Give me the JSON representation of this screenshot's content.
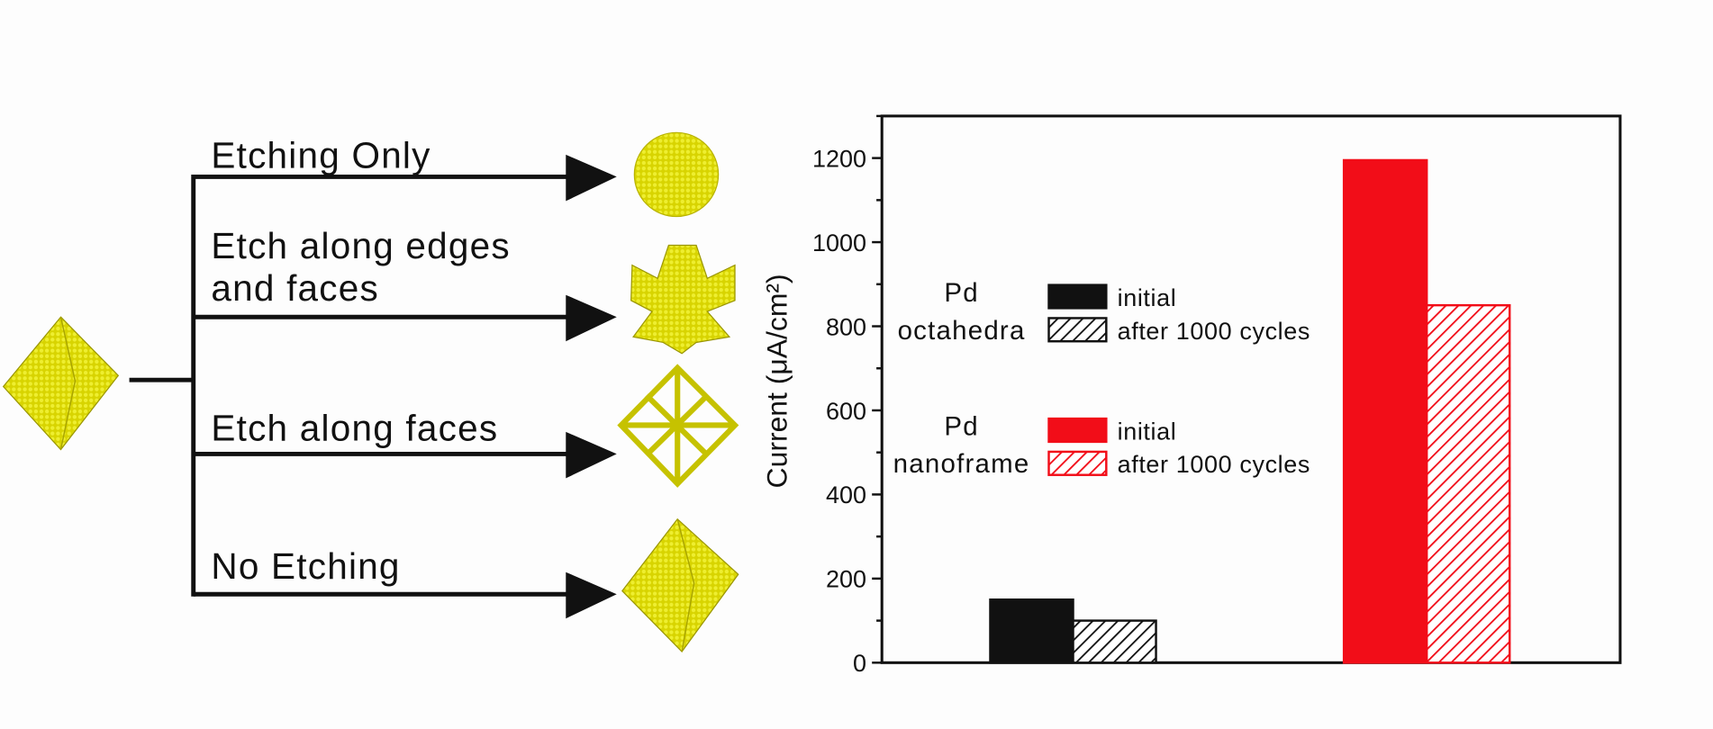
{
  "diagram": {
    "branches": [
      {
        "label_lines": [
          "Etching Only"
        ]
      },
      {
        "label_lines": [
          "Etch along edges",
          "and faces"
        ]
      },
      {
        "label_lines": [
          "Etch along faces"
        ]
      },
      {
        "label_lines": [
          "No Etching"
        ]
      }
    ]
  },
  "chart_data": {
    "type": "grouped_bar",
    "ylabel": "Current (μA/cm²)",
    "ylim": [
      0,
      1300
    ],
    "yticks": [
      0,
      200,
      400,
      600,
      800,
      1000,
      1200
    ],
    "yminor_ticks": [
      100,
      300,
      500,
      700,
      900,
      1100,
      1300
    ],
    "groups": [
      {
        "label_lines": [
          "Pd",
          "octahedra"
        ],
        "color": "#111111",
        "series_names": [
          "initial",
          "after 1000 cycles"
        ],
        "patterns": [
          "solid",
          "hatch"
        ],
        "values": [
          150,
          100
        ]
      },
      {
        "label_lines": [
          "Pd",
          "nanoframe"
        ],
        "color": "#f20d18",
        "series_names": [
          "initial",
          "after 1000 cycles"
        ],
        "patterns": [
          "solid",
          "hatch"
        ],
        "values": [
          1195,
          850
        ]
      }
    ]
  }
}
